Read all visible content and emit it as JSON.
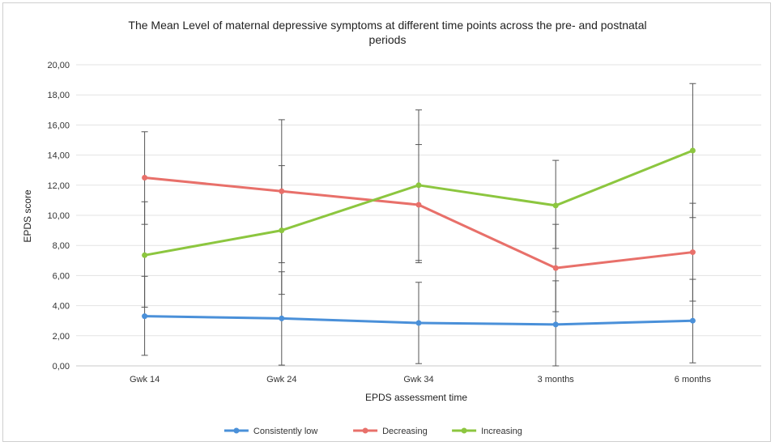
{
  "chart_data": {
    "type": "line",
    "title_line1": "The Mean Level of maternal depressive symptoms at different time points across the pre- and postnatal",
    "title_line2": "periods",
    "xlabel": "EPDS assessment time",
    "ylabel": "EPDS score",
    "categories": [
      "Gwk 14",
      "Gwk 24",
      "Gwk 34",
      "3 months",
      "6 months"
    ],
    "ylim": [
      0,
      20
    ],
    "yticks": [
      "0,00",
      "2,00",
      "4,00",
      "6,00",
      "8,00",
      "10,00",
      "12,00",
      "14,00",
      "16,00",
      "18,00",
      "20,00"
    ],
    "grid": true,
    "legend_position": "bottom",
    "series": [
      {
        "name": "Consistently low",
        "color": "#4a90d9",
        "values": [
          3.3,
          3.15,
          2.85,
          2.75,
          3.0
        ],
        "err_low": [
          0.7,
          0.05,
          0.15,
          0.0,
          0.2
        ],
        "err_high": [
          5.95,
          6.25,
          5.55,
          5.65,
          5.75
        ]
      },
      {
        "name": "Decreasing",
        "color": "#e8706a",
        "values": [
          12.5,
          11.6,
          10.7,
          6.5,
          7.55
        ],
        "err_low": [
          9.4,
          6.85,
          6.85,
          3.6,
          4.3
        ],
        "err_high": [
          15.55,
          16.35,
          14.7,
          9.4,
          10.8
        ]
      },
      {
        "name": "Increasing",
        "color": "#8cc63f",
        "values": [
          7.35,
          9.0,
          12.0,
          10.65,
          14.3
        ],
        "err_low": [
          3.9,
          4.75,
          7.0,
          7.8,
          9.85
        ],
        "err_high": [
          10.9,
          13.3,
          17.0,
          13.65,
          18.75
        ]
      }
    ]
  }
}
